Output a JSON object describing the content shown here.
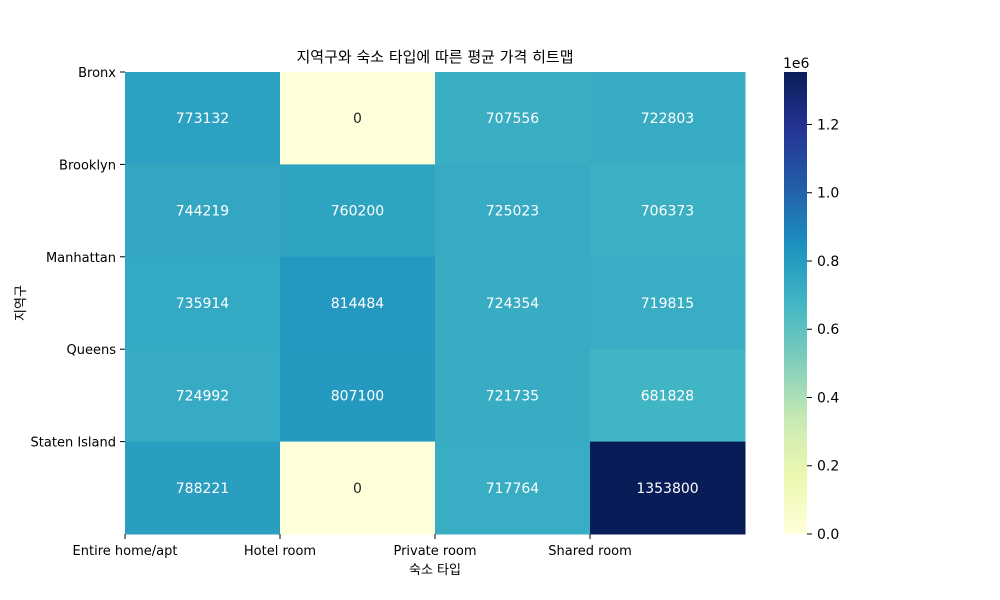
{
  "chart_data": {
    "type": "heatmap",
    "title": "지역구와 숙소 타입에 따른 평균 가격 히트맵",
    "xlabel": "숙소 타입",
    "ylabel": "지역구",
    "x_categories": [
      "Entire home/apt",
      "Hotel room",
      "Private room",
      "Shared room"
    ],
    "y_categories": [
      "Bronx",
      "Brooklyn",
      "Manhattan",
      "Queens",
      "Staten Island"
    ],
    "values": [
      [
        773132,
        0,
        707556,
        722803
      ],
      [
        744219,
        760200,
        725023,
        706373
      ],
      [
        735914,
        814484,
        724354,
        719815
      ],
      [
        724992,
        807100,
        721735,
        681828
      ],
      [
        788221,
        0,
        717764,
        1353800
      ]
    ],
    "colormap": "YlGnBu",
    "vmin": 0,
    "vmax": 1353800,
    "colorbar": {
      "offset_label": "1e6",
      "ticks": [
        0.0,
        0.2,
        0.4,
        0.6,
        0.8,
        1.0,
        1.2
      ],
      "tick_labels": [
        "0.0",
        "0.2",
        "0.4",
        "0.6",
        "0.8",
        "1.0",
        "1.2"
      ],
      "scale": 1000000
    }
  }
}
